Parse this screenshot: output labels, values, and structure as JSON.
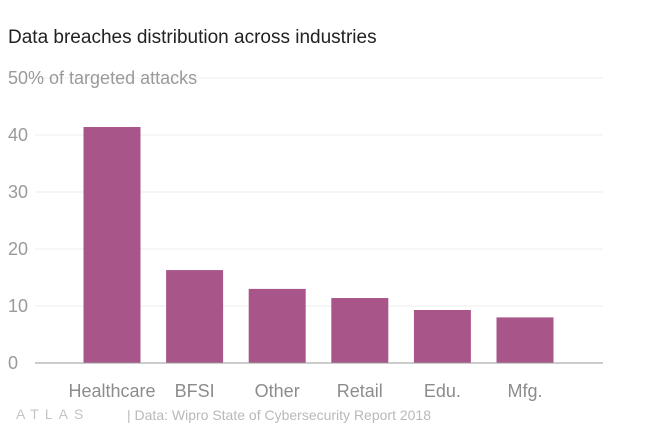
{
  "chart_data": {
    "type": "bar",
    "title": "Data breaches distribution across industries",
    "ylabel": "% of targeted attacks",
    "categories": [
      "Healthcare",
      "BFSI",
      "Other",
      "Retail",
      "Edu.",
      "Mfg."
    ],
    "values": [
      41.4,
      16.3,
      13.0,
      11.4,
      9.3,
      8.0
    ],
    "yticks": [
      0,
      10,
      20,
      30,
      40,
      50
    ],
    "ylim": [
      0,
      50
    ],
    "grid": true,
    "bar_color": "#a8568a"
  },
  "footer": {
    "logo": "ATLAS",
    "source": "| Data: Wipro State of Cybersecurity Report 2018"
  }
}
